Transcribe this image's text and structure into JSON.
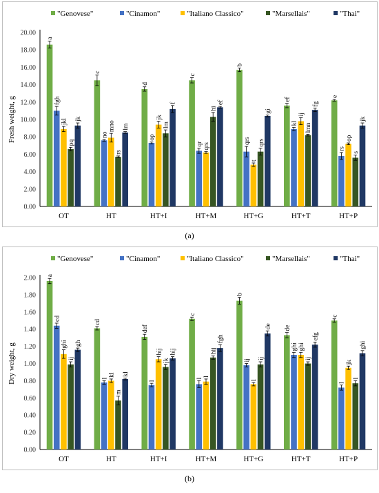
{
  "chart_data": [
    {
      "type": "bar",
      "panel_label": "(a)",
      "ylabel": "Fresh weight, g",
      "xlabel": "",
      "ylim": [
        0,
        20
      ],
      "ytick_step": 2,
      "ytick_decimals": 2,
      "grid": false,
      "legend_position": "top",
      "categories": [
        "OT",
        "HT",
        "HT+I",
        "HT+M",
        "HT+G",
        "HT+T",
        "HT+P"
      ],
      "series": [
        {
          "name": "\"Genovese\"",
          "color": "#70ad47",
          "values": [
            18.6,
            14.5,
            13.5,
            14.5,
            15.7,
            11.6,
            12.2
          ],
          "errors": [
            0.4,
            0.6,
            0.25,
            0.3,
            0.2,
            0.25,
            0.1
          ],
          "labels": [
            "a",
            "c",
            "d",
            "c",
            "b",
            "ef",
            "e"
          ]
        },
        {
          "name": "\"Cinamon\"",
          "color": "#4472c4",
          "values": [
            11.0,
            7.6,
            7.3,
            6.4,
            6.3,
            8.9,
            5.8
          ],
          "errors": [
            0.5,
            0.1,
            0.1,
            0.3,
            0.6,
            0.2,
            0.4
          ],
          "labels": [
            "fgh",
            "no",
            "op",
            "qr",
            "qrs",
            "kl",
            "rs"
          ]
        },
        {
          "name": "\"Italiano Classico\"",
          "color": "#ffc000",
          "values": [
            8.9,
            7.9,
            9.4,
            6.2,
            4.8,
            9.8,
            7.2
          ],
          "errors": [
            0.3,
            0.5,
            0.4,
            0.1,
            0.2,
            0.4,
            0.1
          ],
          "labels": [
            "jkl",
            "mno",
            "jk",
            "qrs",
            "t",
            "ij",
            "op"
          ]
        },
        {
          "name": "\"Marsellais\"",
          "color": "#375623",
          "values": [
            6.6,
            5.7,
            8.4,
            10.3,
            6.3,
            8.2,
            5.6
          ],
          "errors": [
            0.2,
            0.1,
            0.4,
            0.5,
            0.4,
            0.1,
            0.3
          ],
          "labels": [
            "pq",
            "rs",
            "lm",
            "hi",
            "qrs",
            "lmn",
            "s"
          ]
        },
        {
          "name": "\"Thai\"",
          "color": "#203864",
          "values": [
            9.3,
            8.5,
            11.2,
            11.4,
            10.4,
            11.1,
            9.3
          ],
          "errors": [
            0.3,
            0.1,
            0.4,
            0.1,
            0.1,
            0.2,
            0.3
          ],
          "labels": [
            "jk",
            "lm",
            "f",
            "ef",
            "gi",
            "fg",
            "jk"
          ]
        }
      ]
    },
    {
      "type": "bar",
      "panel_label": "(b)",
      "ylabel": "Dry weight, g",
      "xlabel": "",
      "ylim": [
        0,
        2
      ],
      "ytick_step": 0.2,
      "ytick_decimals": 2,
      "grid": false,
      "legend_position": "top",
      "categories": [
        "OT",
        "HT",
        "HT+I",
        "HT+M",
        "HT+G",
        "HT+T",
        "HT+P"
      ],
      "series": [
        {
          "name": "\"Genovese\"",
          "color": "#70ad47",
          "values": [
            1.96,
            1.41,
            1.31,
            1.52,
            1.73,
            1.33,
            1.5
          ],
          "errors": [
            0.03,
            0.02,
            0.03,
            0.02,
            0.04,
            0.03,
            0.02
          ],
          "labels": [
            "a",
            "cd",
            "def",
            "c",
            "b",
            "de",
            "c"
          ]
        },
        {
          "name": "\"Cinamon\"",
          "color": "#4472c4",
          "values": [
            1.44,
            0.78,
            0.75,
            0.76,
            0.98,
            1.1,
            0.72
          ],
          "errors": [
            0.03,
            0.02,
            0.02,
            0.04,
            0.02,
            0.03,
            0.03
          ],
          "labels": [
            "cd",
            "l",
            "l",
            "l",
            "ij",
            "ghi",
            "l"
          ]
        },
        {
          "name": "\"Italiano Classico\"",
          "color": "#ffc000",
          "values": [
            1.11,
            0.8,
            1.05,
            0.79,
            0.76,
            1.1,
            0.95
          ],
          "errors": [
            0.05,
            0.02,
            0.03,
            0.03,
            0.02,
            0.03,
            0.02
          ],
          "labels": [
            "ghi",
            "kl",
            "hij",
            "l",
            "l",
            "ghi",
            "jk"
          ]
        },
        {
          "name": "\"Marsellais\"",
          "color": "#375623",
          "values": [
            0.99,
            0.57,
            0.96,
            1.07,
            0.99,
            1.0,
            0.77
          ],
          "errors": [
            0.03,
            0.05,
            0.03,
            0.02,
            0.03,
            0.02,
            0.03
          ],
          "labels": [
            "ij",
            "m",
            "jk",
            "hij",
            "ij",
            "ij",
            "l"
          ]
        },
        {
          "name": "\"Thai\"",
          "color": "#203864",
          "values": [
            1.16,
            0.82,
            1.06,
            1.18,
            1.35,
            1.22,
            1.12
          ],
          "errors": [
            0.02,
            0.01,
            0.02,
            0.04,
            0.03,
            0.03,
            0.03
          ],
          "labels": [
            "gh",
            "kl",
            "hij",
            "fgh",
            "de",
            "efg",
            "ghi"
          ]
        }
      ]
    }
  ]
}
